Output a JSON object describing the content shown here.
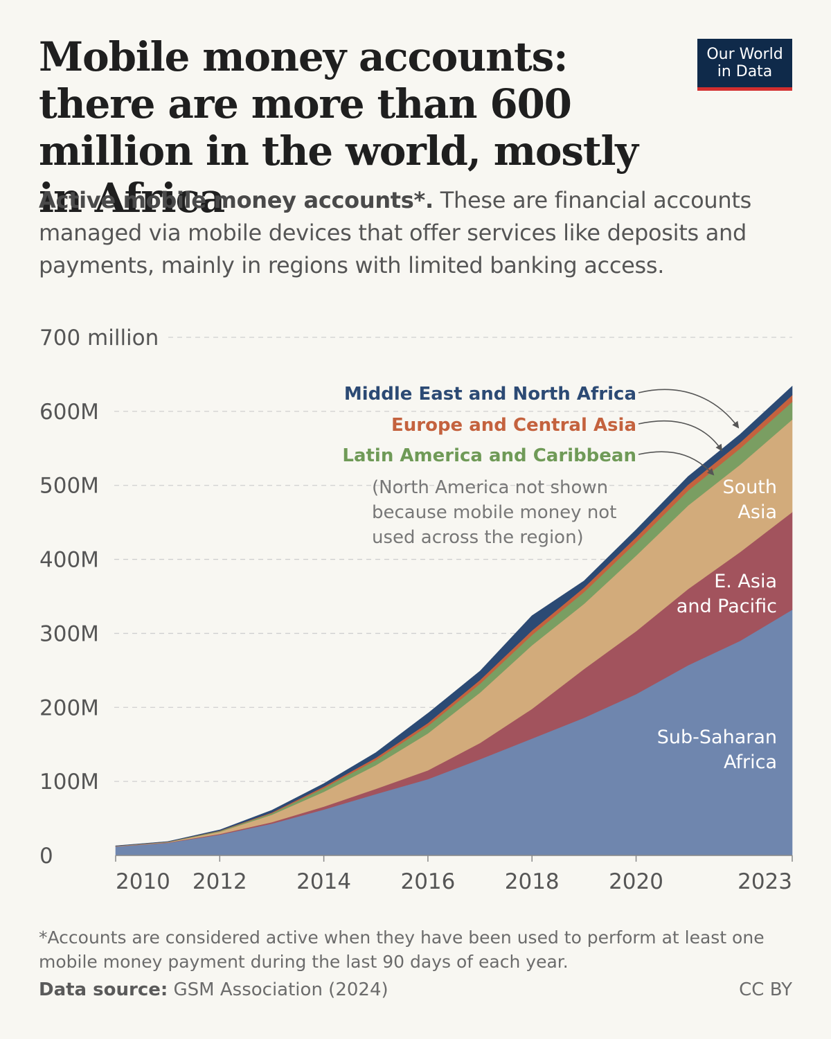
{
  "header": {
    "title": "Mobile money accounts: there are more than 600 million in the world, mostly in Africa",
    "subtitle_bold": "Active mobile money accounts*.",
    "subtitle_rest": " These are financial accounts managed via mobile devices that offer services like deposits and payments, mainly in regions with limited banking access."
  },
  "logo": {
    "line1": "Our World",
    "line2": "in Data"
  },
  "footer": {
    "footnote": "*Accounts are considered active when they have been used to perform at least one mobile money payment during the last 90 days of each year.",
    "source_label": "Data source:",
    "source_text": " GSM Association (2024)",
    "license": "CC BY"
  },
  "chart_data": {
    "type": "area",
    "stacked": true,
    "x": [
      2010,
      2011,
      2012,
      2013,
      2014,
      2015,
      2016,
      2017,
      2018,
      2019,
      2020,
      2021,
      2022,
      2023
    ],
    "x_tick_labels": [
      "2010",
      "2012",
      "2014",
      "2016",
      "2018",
      "2020",
      "2023"
    ],
    "x_ticks": [
      2010,
      2012,
      2014,
      2016,
      2018,
      2020,
      2023
    ],
    "y_ticks": [
      0,
      100,
      200,
      300,
      400,
      500,
      600,
      700
    ],
    "y_tick_labels": [
      "0",
      "100M",
      "200M",
      "300M",
      "400M",
      "500M",
      "600M",
      "700 million"
    ],
    "ylim": [
      0,
      700
    ],
    "xlim": [
      2010,
      2023
    ],
    "y_unit": "million",
    "grid": true,
    "series": [
      {
        "name": "Sub-Saharan Africa",
        "color": "#6f86ae",
        "values": [
          12,
          17,
          28,
          43,
          62,
          83,
          103,
          130,
          158,
          186,
          218,
          257,
          290,
          332
        ]
      },
      {
        "name": "E. Asia and Pacific",
        "color": "#a2535d",
        "values": [
          0.3,
          0.5,
          1,
          2,
          4,
          7,
          12,
          22,
          40,
          66,
          85,
          103,
          120,
          132
        ]
      },
      {
        "name": "South Asia",
        "color": "#d2ab7b",
        "values": [
          0.2,
          0.5,
          3,
          10,
          20,
          32,
          50,
          68,
          86,
          88,
          102,
          113,
          118,
          125
        ]
      },
      {
        "name": "Latin America and Caribbean",
        "color": "#7a9e62",
        "values": [
          0.2,
          0.3,
          1,
          2,
          5,
          7,
          10,
          12,
          14,
          16,
          18,
          20,
          22,
          24
        ]
      },
      {
        "name": "Europe and Central Asia",
        "color": "#c4623e",
        "values": [
          0.1,
          0.2,
          0.5,
          1,
          2,
          3,
          4,
          5,
          6,
          6,
          7,
          8,
          8,
          9
        ]
      },
      {
        "name": "Middle East and North Africa",
        "color": "#2c4a74",
        "values": [
          0.2,
          0.3,
          1,
          3,
          4,
          7,
          13,
          12,
          20,
          9,
          10,
          11,
          11,
          12
        ]
      }
    ],
    "annotations": {
      "mena": "Middle East and North Africa",
      "eca": "Europe and Central Asia",
      "lac": "Latin America and Caribbean",
      "note_line1": "(North America not shown",
      "note_line2": "because mobile money not",
      "note_line3": "used across the region)",
      "south_asia_1": "South",
      "south_asia_2": "Asia",
      "eap_1": "E. Asia",
      "eap_2": "and Pacific",
      "ssa_1": "Sub-Saharan",
      "ssa_2": "Africa"
    },
    "annotation_colors": {
      "mena": "#2c4a74",
      "eca": "#c4623e",
      "lac": "#6f9a57",
      "note": "#777777",
      "inside": "#ffffff"
    }
  }
}
